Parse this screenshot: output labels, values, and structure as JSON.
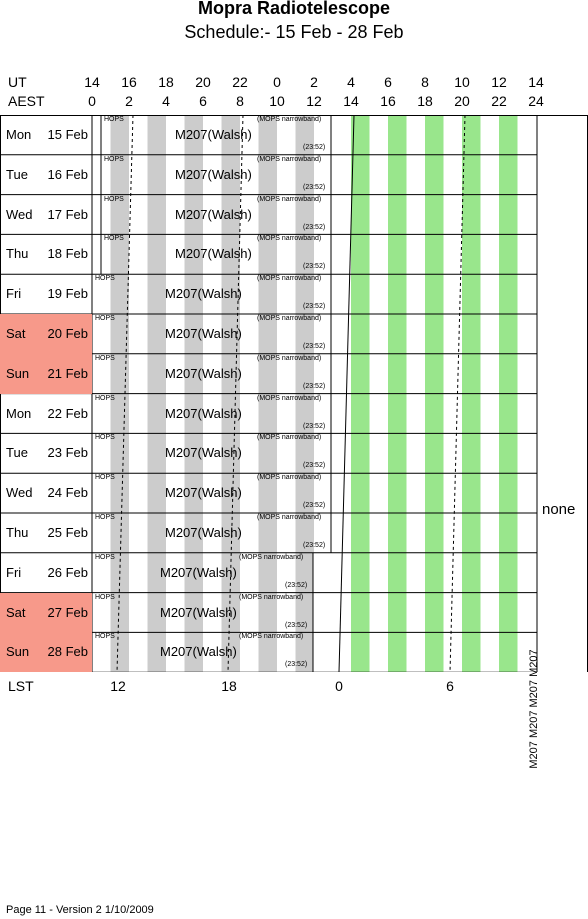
{
  "title": "Mopra Radiotelescope",
  "subtitle": "Schedule:- 15 Feb - 28 Feb",
  "ut_label": "UT",
  "aest_label": "AEST",
  "ut_ticks": [
    "14",
    "16",
    "18",
    "20",
    "22",
    "0",
    "2",
    "4",
    "6",
    "8",
    "10",
    "12",
    "14"
  ],
  "aest_ticks": [
    "0",
    "2",
    "4",
    "6",
    "8",
    "10",
    "12",
    "14",
    "16",
    "18",
    "20",
    "22",
    "24"
  ],
  "days": [
    {
      "name": "Mon",
      "date": "15 Feb",
      "weekend": false
    },
    {
      "name": "Tue",
      "date": "16 Feb",
      "weekend": false
    },
    {
      "name": "Wed",
      "date": "17 Feb",
      "weekend": false
    },
    {
      "name": "Thu",
      "date": "18 Feb",
      "weekend": false
    },
    {
      "name": "Fri",
      "date": "19 Feb",
      "weekend": false
    },
    {
      "name": "Sat",
      "date": "20 Feb",
      "weekend": true
    },
    {
      "name": "Sun",
      "date": "21 Feb",
      "weekend": true
    },
    {
      "name": "Mon",
      "date": "22 Feb",
      "weekend": false
    },
    {
      "name": "Tue",
      "date": "23 Feb",
      "weekend": false
    },
    {
      "name": "Wed",
      "date": "24 Feb",
      "weekend": false
    },
    {
      "name": "Thu",
      "date": "25 Feb",
      "weekend": false
    },
    {
      "name": "Fri",
      "date": "26 Feb",
      "weekend": false
    },
    {
      "name": "Sat",
      "date": "27 Feb",
      "weekend": true
    },
    {
      "name": "Sun",
      "date": "28 Feb",
      "weekend": true
    }
  ],
  "obs_label": "M207(Walsh)",
  "hops_label": "HOPS",
  "mops_label": "(MOPS narrowband)",
  "end_time_label": "(23:52)",
  "none_label": "none",
  "vertical_label": "M207 M207 M207 M207",
  "lst_label": "LST",
  "lst_ticks": [
    "12",
    "18",
    "0",
    "6"
  ],
  "footer": "Page 11 - Version 2  1/10/2009",
  "colors": {
    "weekend": "#f7998a",
    "grey": "#cccccc",
    "green": "#99e68c"
  }
}
